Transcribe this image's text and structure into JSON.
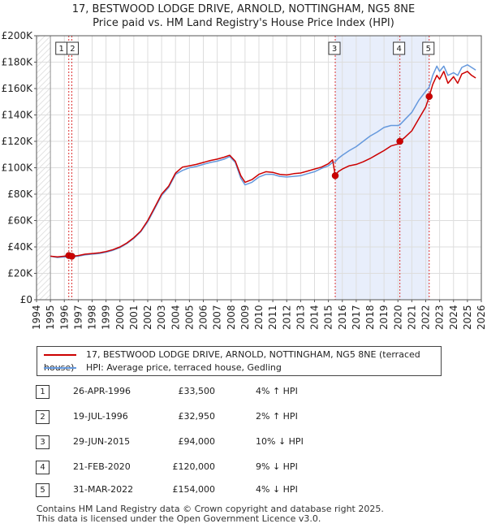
{
  "title_line1": "17, BESTWOOD LODGE DRIVE, ARNOLD, NOTTINGHAM, NG5 8NE",
  "title_line2": "Price paid vs. HM Land Registry's House Price Index (HPI)",
  "chart_data": {
    "type": "line",
    "title": "17, BESTWOOD LODGE DRIVE, ARNOLD, NOTTINGHAM, NG5 8NE — Price paid vs. HM Land Registry's House Price Index (HPI)",
    "xlabel": "",
    "ylabel": "",
    "xlim": [
      1994,
      2026
    ],
    "ylim": [
      0,
      200000
    ],
    "y_ticks": [
      0,
      20000,
      40000,
      60000,
      80000,
      100000,
      120000,
      140000,
      160000,
      180000,
      200000
    ],
    "y_tick_labels": [
      "£0",
      "£20K",
      "£40K",
      "£60K",
      "£80K",
      "£100K",
      "£120K",
      "£140K",
      "£160K",
      "£180K",
      "£200K"
    ],
    "x_ticks": [
      "1994",
      "1995",
      "1996",
      "1997",
      "1998",
      "1999",
      "2000",
      "2001",
      "2002",
      "2003",
      "2004",
      "2005",
      "2006",
      "2007",
      "2008",
      "2009",
      "2010",
      "2011",
      "2012",
      "2013",
      "2014",
      "2015",
      "2016",
      "2017",
      "2018",
      "2019",
      "2020",
      "2021",
      "2022",
      "2023",
      "2024",
      "2025",
      "2026"
    ],
    "data_start": 1995.0,
    "grid": true,
    "series": [
      {
        "name": "17, BESTWOOD LODGE DRIVE, ARNOLD, NOTTINGHAM, NG5 8NE (terraced house)",
        "color": "#cc0000",
        "x": [
          1995.0,
          1995.5,
          1996.0,
          1996.32,
          1996.54,
          1997.0,
          1997.5,
          1998.0,
          1998.5,
          1999.0,
          1999.5,
          2000.0,
          2000.5,
          2001.0,
          2001.5,
          2002.0,
          2002.5,
          2003.0,
          2003.5,
          2004.0,
          2004.5,
          2005.0,
          2005.5,
          2006.0,
          2006.5,
          2007.0,
          2007.5,
          2007.9,
          2008.3,
          2008.7,
          2009.0,
          2009.5,
          2010.0,
          2010.5,
          2011.0,
          2011.5,
          2012.0,
          2012.5,
          2013.0,
          2013.5,
          2014.0,
          2014.5,
          2015.0,
          2015.3,
          2015.49,
          2015.7,
          2016.0,
          2016.5,
          2017.0,
          2017.5,
          2018.0,
          2018.5,
          2019.0,
          2019.5,
          2020.0,
          2020.14,
          2020.5,
          2021.0,
          2021.5,
          2022.0,
          2022.25,
          2022.5,
          2022.8,
          2023.0,
          2023.3,
          2023.6,
          2024.0,
          2024.3,
          2024.6,
          2025.0,
          2025.3,
          2025.6
        ],
        "values": [
          33000,
          32500,
          33000,
          33500,
          32950,
          33500,
          34500,
          35000,
          35500,
          36500,
          38000,
          40000,
          43000,
          47000,
          52000,
          60000,
          70000,
          80000,
          86000,
          96000,
          100500,
          101500,
          102500,
          104000,
          105500,
          106500,
          108000,
          109500,
          105000,
          94000,
          89000,
          91000,
          95000,
          97000,
          96500,
          95000,
          94500,
          95500,
          96000,
          97500,
          99000,
          100500,
          103000,
          106000,
          94000,
          97000,
          99000,
          101500,
          102500,
          104500,
          107000,
          110000,
          113000,
          116500,
          118000,
          120000,
          123000,
          128000,
          137000,
          146000,
          154000,
          163000,
          170000,
          167000,
          173000,
          164000,
          169000,
          164000,
          171000,
          173000,
          170000,
          168000
        ]
      },
      {
        "name": "HPI: Average price, terraced house, Gedling",
        "color": "#6699dd",
        "x": [
          1995.0,
          1995.5,
          1996.0,
          1996.32,
          1996.54,
          1997.0,
          1997.5,
          1998.0,
          1998.5,
          1999.0,
          1999.5,
          2000.0,
          2000.5,
          2001.0,
          2001.5,
          2002.0,
          2002.5,
          2003.0,
          2003.5,
          2004.0,
          2004.5,
          2005.0,
          2005.5,
          2006.0,
          2006.5,
          2007.0,
          2007.5,
          2007.9,
          2008.3,
          2008.7,
          2009.0,
          2009.5,
          2010.0,
          2010.5,
          2011.0,
          2011.5,
          2012.0,
          2012.5,
          2013.0,
          2013.5,
          2014.0,
          2014.5,
          2015.0,
          2015.3,
          2015.49,
          2015.7,
          2016.0,
          2016.5,
          2017.0,
          2017.5,
          2018.0,
          2018.5,
          2019.0,
          2019.5,
          2020.0,
          2020.14,
          2020.5,
          2021.0,
          2021.5,
          2022.0,
          2022.25,
          2022.5,
          2022.8,
          2023.0,
          2023.3,
          2023.6,
          2024.0,
          2024.3,
          2024.6,
          2025.0,
          2025.3,
          2025.6
        ],
        "values": [
          33000,
          32000,
          32500,
          32300,
          32400,
          33000,
          34000,
          34500,
          35000,
          36000,
          37500,
          39500,
          42500,
          46500,
          51500,
          59000,
          69000,
          79000,
          85000,
          95000,
          98000,
          100000,
          101000,
          102500,
          104000,
          105000,
          106500,
          108500,
          104000,
          92000,
          87000,
          89000,
          93000,
          95000,
          95000,
          93500,
          93000,
          93500,
          94000,
          95500,
          97000,
          99500,
          101500,
          104000,
          104500,
          107000,
          109500,
          113000,
          116000,
          120000,
          124000,
          127000,
          130500,
          132000,
          132000,
          132500,
          136500,
          142000,
          151000,
          158000,
          161000,
          170000,
          177000,
          173000,
          177000,
          170000,
          172000,
          170000,
          176000,
          178000,
          176000,
          174000
        ]
      }
    ],
    "sales": [
      {
        "n": "1",
        "x": 1996.32,
        "value": 33500
      },
      {
        "n": "2",
        "x": 1996.54,
        "value": 32950
      },
      {
        "n": "3",
        "x": 2015.49,
        "value": 94000
      },
      {
        "n": "4",
        "x": 2020.14,
        "value": 120000
      },
      {
        "n": "5",
        "x": 2022.25,
        "value": 154000
      }
    ],
    "shaded_spans": [
      [
        2015.49,
        2020.14
      ],
      [
        2020.14,
        2022.25
      ]
    ],
    "marker_colors": {
      "sale_point": "#cc0000",
      "vline": "#dd3333",
      "shade": "#e8eefb"
    }
  },
  "legend": {
    "property_label": "17, BESTWOOD LODGE DRIVE, ARNOLD, NOTTINGHAM, NG5 8NE (terraced house)",
    "hpi_label": "HPI: Average price, terraced house, Gedling"
  },
  "transactions": [
    {
      "n": "1",
      "date": "26-APR-1996",
      "price": "£33,500",
      "hpi": "4% ↑ HPI"
    },
    {
      "n": "2",
      "date": "19-JUL-1996",
      "price": "£32,950",
      "hpi": "2% ↑ HPI"
    },
    {
      "n": "3",
      "date": "29-JUN-2015",
      "price": "£94,000",
      "hpi": "10% ↓ HPI"
    },
    {
      "n": "4",
      "date": "21-FEB-2020",
      "price": "£120,000",
      "hpi": "9% ↓ HPI"
    },
    {
      "n": "5",
      "date": "31-MAR-2022",
      "price": "£154,000",
      "hpi": "4% ↓ HPI"
    }
  ],
  "footer": {
    "line1": "Contains HM Land Registry data © Crown copyright and database right 2025.",
    "line2": "This data is licensed under the Open Government Licence v3.0."
  }
}
